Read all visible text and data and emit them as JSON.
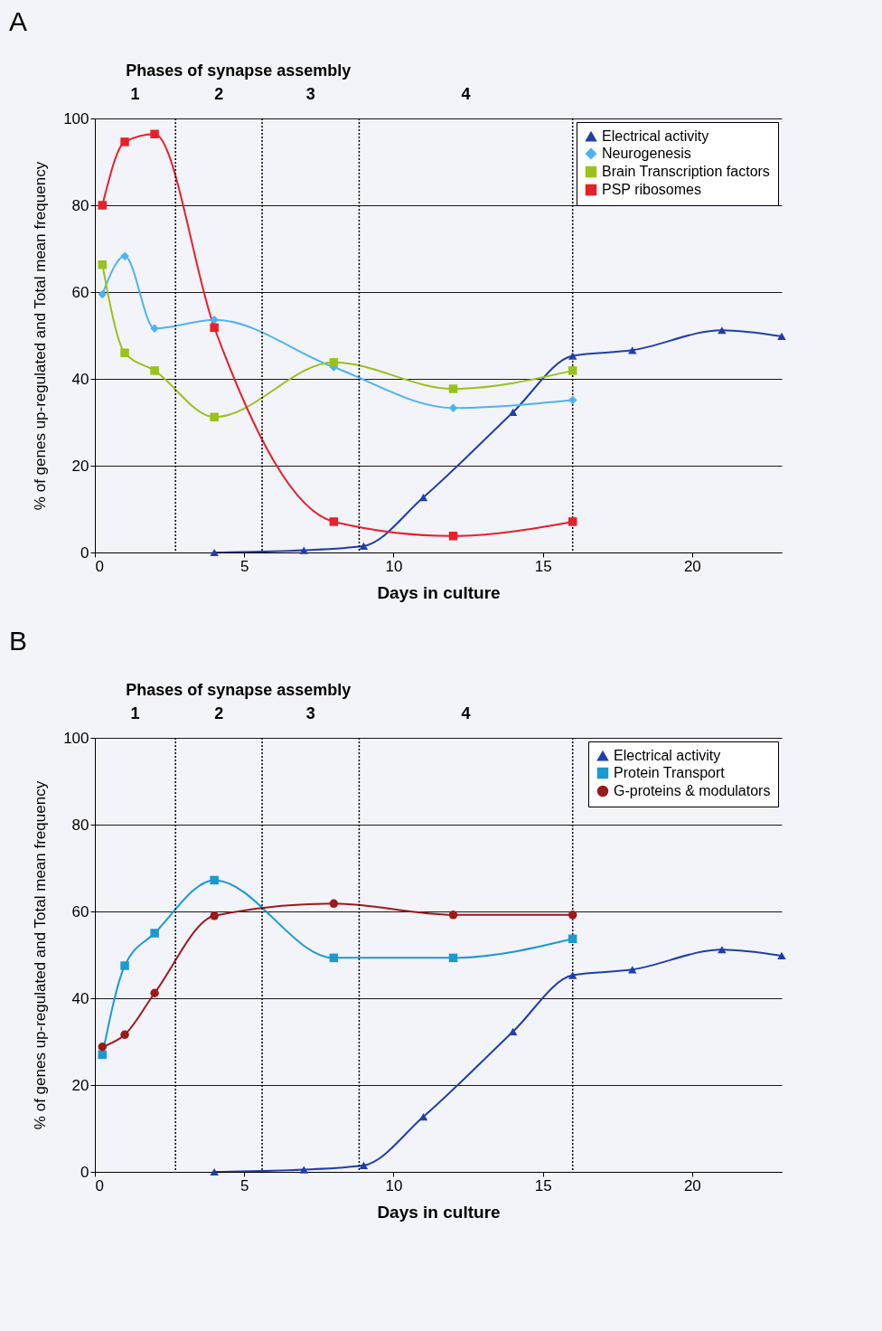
{
  "chart_data": [
    {
      "type": "line",
      "title": "A",
      "xlabel": "Days in culture",
      "ylabel": "% of genes up-regulated and Total mean frequency",
      "annotations": [
        "Phases of synapse assembly",
        "1",
        "2",
        "3",
        "4"
      ],
      "xlim": [
        0,
        23
      ],
      "xticks": [
        0,
        5,
        10,
        15,
        20
      ],
      "ylim": [
        0,
        100
      ],
      "yticks": [
        0,
        20,
        40,
        60,
        80,
        100
      ],
      "grid": "y",
      "legend": "top right",
      "ref_lines": [
        {
          "axis": "x",
          "value": 2.7,
          "line_style": "dotted"
        },
        {
          "axis": "x",
          "value": 5.6,
          "line_style": "dotted"
        },
        {
          "axis": "x",
          "value": 8.85,
          "line_style": "dotted"
        },
        {
          "axis": "x",
          "value": 16,
          "line_style": "dotted"
        }
      ],
      "series": [
        {
          "name": "Electrical activity",
          "color": "#1f3fa8",
          "marker": "triangle",
          "x": [
            4,
            7,
            9,
            11,
            14,
            16,
            18,
            21,
            23
          ],
          "values": [
            0,
            0.5,
            1.5,
            12.7,
            32.3,
            45.3,
            46.6,
            51.2,
            49.8
          ]
        },
        {
          "name": "Neurogenesis",
          "color": "#4db3f0",
          "marker": "diamond",
          "x": [
            0.25,
            1,
            2,
            4,
            8,
            12,
            16
          ],
          "values": [
            59.5,
            68.3,
            51.6,
            53.6,
            42.7,
            33.3,
            35.1
          ]
        },
        {
          "name": "Brain Transcription factors",
          "color": "#99c21c",
          "marker": "square",
          "x": [
            0.25,
            1,
            2,
            4,
            8,
            12,
            16
          ],
          "values": [
            66.3,
            46,
            41.9,
            31.2,
            43.8,
            37.7,
            41.9
          ]
        },
        {
          "name": "PSP ribosomes",
          "color": "#e8202a",
          "marker": "square",
          "x": [
            0.25,
            1,
            2,
            4,
            8,
            12,
            16
          ],
          "values": [
            80,
            94.6,
            96.4,
            51.8,
            7.1,
            3.8,
            7.1
          ]
        }
      ]
    },
    {
      "type": "line",
      "title": "B",
      "xlabel": "Days in culture",
      "ylabel": "% of genes up-regulated and Total mean frequency",
      "annotations": [
        "Phases of synapse assembly",
        "1",
        "2",
        "3",
        "4"
      ],
      "xlim": [
        0,
        23
      ],
      "xticks": [
        0,
        5,
        10,
        15,
        20
      ],
      "ylim": [
        0,
        100
      ],
      "yticks": [
        0,
        20,
        40,
        60,
        80,
        100
      ],
      "grid": "y",
      "legend": "top right",
      "ref_lines": [
        {
          "axis": "x",
          "value": 2.7,
          "line_style": "dotted"
        },
        {
          "axis": "x",
          "value": 5.6,
          "line_style": "dotted"
        },
        {
          "axis": "x",
          "value": 8.85,
          "line_style": "dotted"
        },
        {
          "axis": "x",
          "value": 16,
          "line_style": "dotted"
        }
      ],
      "series": [
        {
          "name": "Electrical activity",
          "color": "#1f3fa8",
          "marker": "triangle",
          "x": [
            4,
            7,
            9,
            11,
            14,
            16,
            18,
            21,
            23
          ],
          "values": [
            0,
            0.5,
            1.5,
            12.7,
            32.3,
            45.3,
            46.6,
            51.2,
            49.8
          ]
        },
        {
          "name": "Protein Transport",
          "color": "#1a9ad0",
          "marker": "square",
          "x": [
            0.25,
            1,
            2,
            4,
            8,
            12,
            16
          ],
          "values": [
            27,
            47.5,
            55,
            67.2,
            49.3,
            49.3,
            53.7
          ]
        },
        {
          "name": "G-proteins & modulators",
          "color": "#9b1b1b",
          "marker": "circle",
          "x": [
            0.25,
            1,
            2,
            4,
            8,
            12,
            16
          ],
          "values": [
            28.8,
            31.6,
            41.2,
            59,
            61.8,
            59.2,
            59.2
          ]
        }
      ]
    }
  ]
}
